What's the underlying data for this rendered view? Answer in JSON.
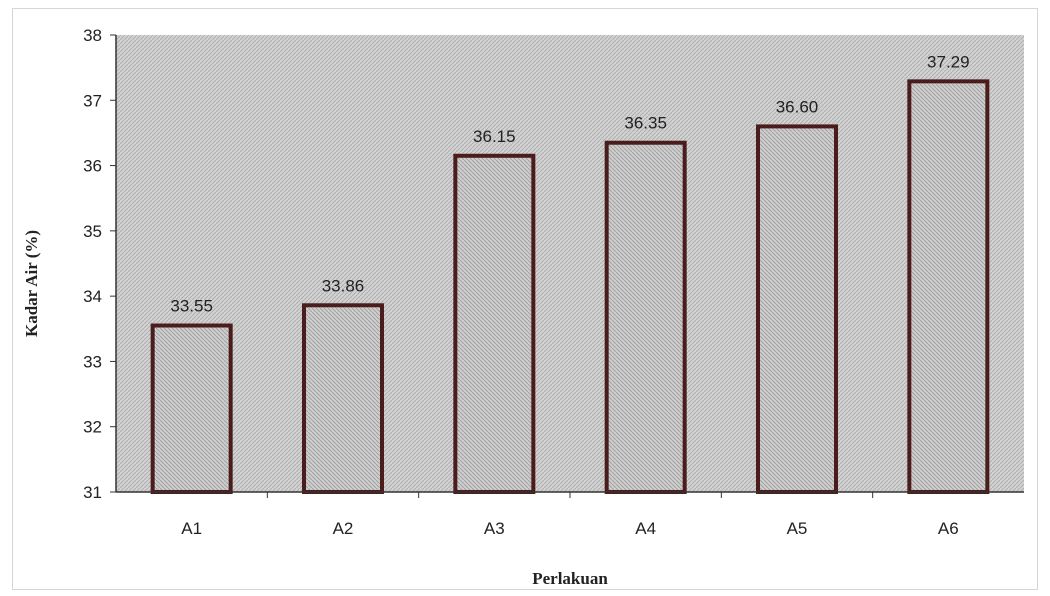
{
  "chart_data": {
    "type": "bar",
    "categories": [
      "A1",
      "A2",
      "A3",
      "A4",
      "A5",
      "A6"
    ],
    "values": [
      33.55,
      33.86,
      36.15,
      36.35,
      36.6,
      37.29
    ],
    "data_labels": [
      "33.55",
      "33.86",
      "36.15",
      "36.35",
      "36.60",
      "37.29"
    ],
    "xlabel": "Perlakuan",
    "ylabel": "Kadar Air (%)",
    "ylim": [
      31,
      38
    ],
    "yticks": [
      31,
      32,
      33,
      34,
      35,
      36,
      37,
      38
    ],
    "grid": false,
    "legend": "none",
    "colors": {
      "plot_background": "#cfcfcf",
      "bar_fill": "#c9c9c9",
      "bar_edge": "#4a1c1c",
      "axis": "#333333",
      "text": "#222222"
    }
  }
}
